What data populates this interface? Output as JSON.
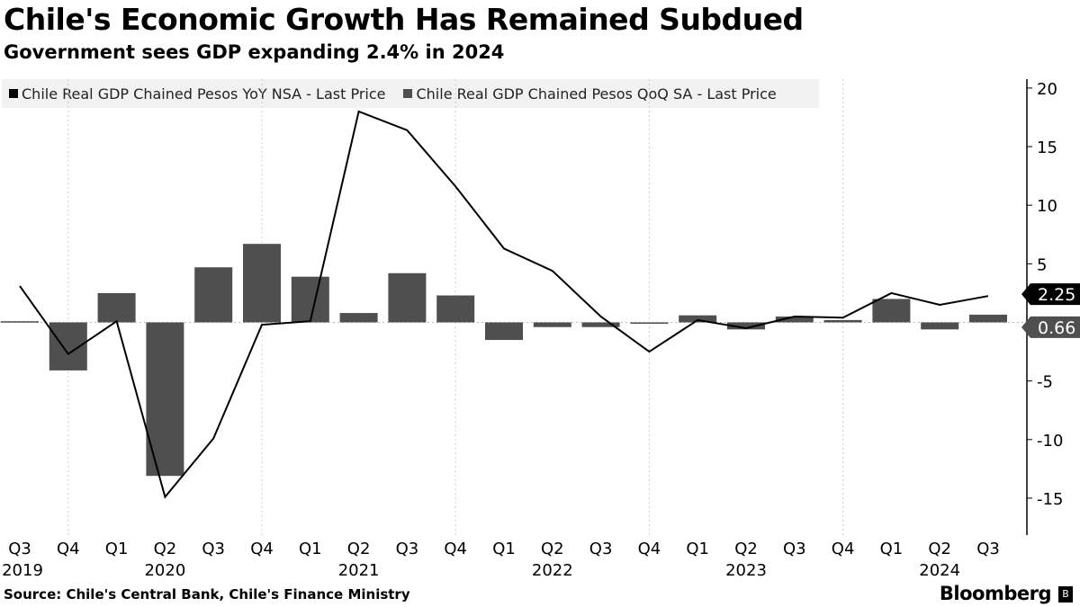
{
  "title": "Chile's Economic Growth Has Remained Subdued",
  "subtitle": "Government sees GDP expanding 2.4% in 2024",
  "source": "Source: Chile's Central Bank, Chile's Finance Ministry",
  "brand": "Bloomberg",
  "chart_data": {
    "type": "bar+line",
    "categories": [
      "Q3",
      "Q4",
      "Q1",
      "Q2",
      "Q3",
      "Q4",
      "Q1",
      "Q2",
      "Q3",
      "Q4",
      "Q1",
      "Q2",
      "Q3",
      "Q4",
      "Q1",
      "Q2",
      "Q3",
      "Q4",
      "Q1",
      "Q2",
      "Q3"
    ],
    "years": [
      {
        "label": "2019",
        "index": 0
      },
      {
        "label": "2020",
        "index": 3
      },
      {
        "label": "2021",
        "index": 7
      },
      {
        "label": "2022",
        "index": 11
      },
      {
        "label": "2023",
        "index": 15
      },
      {
        "label": "2024",
        "index": 19
      }
    ],
    "series": [
      {
        "name": "Chile Real GDP Chained Pesos YoY NSA - Last Price",
        "type": "line",
        "color": "#000000",
        "values": [
          3.1,
          -2.7,
          0.1,
          -14.9,
          -9.9,
          -0.2,
          0.1,
          18.0,
          16.4,
          11.6,
          6.3,
          4.4,
          0.5,
          -2.5,
          0.2,
          -0.5,
          0.5,
          0.4,
          2.5,
          1.5,
          2.25
        ],
        "last_label": "2.25"
      },
      {
        "name": "Chile Real GDP Chained Pesos QoQ SA - Last Price",
        "type": "bar",
        "color": "#4f4f4f",
        "values": [
          0.1,
          -4.1,
          2.5,
          -13.1,
          4.7,
          6.7,
          3.9,
          0.8,
          4.2,
          2.3,
          -1.5,
          -0.4,
          -0.4,
          -0.1,
          0.6,
          -0.6,
          0.5,
          0.2,
          2.0,
          -0.6,
          0.66
        ],
        "last_label": "0.66"
      }
    ],
    "yticks": [
      20,
      15,
      10,
      5,
      0,
      -5,
      -10,
      -15
    ],
    "ylim": [
      -18,
      21
    ],
    "axis_position": "right"
  }
}
